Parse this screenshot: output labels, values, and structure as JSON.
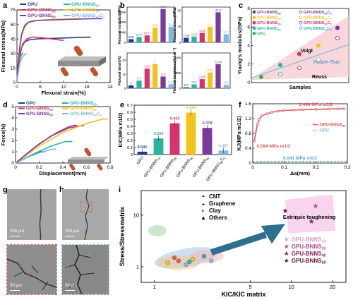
{
  "panel_labels": {
    "a": "a",
    "b": "b",
    "c": "c",
    "d": "d",
    "e": "e",
    "f": "f",
    "g": "g",
    "h": "h",
    "i": "i"
  },
  "colors": {
    "GPU": "#1f3a93",
    "GPU-BNNS10": "#2bb3a0",
    "GPU-BNNS20": "#d6336c",
    "GPU-BNNS40": "#f0c419",
    "GPU-BNNS50": "#7a3b9c",
    "GPU-BNNS40C2": "#7fb7e0",
    "green": "#3cb44b",
    "accent_f": "#e4585c"
  },
  "chart_data": [
    {
      "id": "a",
      "type": "line",
      "xlabel": "Flexural strain(%)",
      "ylabel": "Flexural stress(MPa)",
      "xlim": [
        0,
        24
      ],
      "ylim": [
        0,
        75
      ],
      "xticks": [
        0,
        6,
        12,
        18,
        24
      ],
      "yticks": [
        0,
        15,
        30,
        45,
        60,
        75
      ],
      "grid": false,
      "legend_position": "top",
      "series": [
        {
          "name": "GPU",
          "color": "GPU",
          "x": [
            0,
            0.3,
            0.7,
            1.2,
            2,
            3,
            5,
            8,
            12,
            16,
            19
          ],
          "y": [
            0,
            13,
            26,
            36,
            42,
            44,
            45,
            45.5,
            46,
            46.5,
            47
          ]
        },
        {
          "name": "GPU-BNNS10",
          "color": "GPU-BNNS10",
          "x": [
            0,
            0.2,
            0.5,
            0.8,
            1.2,
            1.6
          ],
          "y": [
            0,
            10,
            19,
            25,
            29,
            31
          ]
        },
        {
          "name": "GPU-BNNS20",
          "color": "GPU-BNNS20",
          "x": [
            0,
            0.3,
            0.8,
            1.5,
            2.5,
            4,
            6,
            8,
            10,
            12
          ],
          "y": [
            0,
            15,
            30,
            40,
            45,
            47,
            46.5,
            45.5,
            44.5,
            43.5
          ]
        },
        {
          "name": "GPU-BNNS40",
          "color": "GPU-BNNS40",
          "x": [
            0,
            0.3,
            0.7,
            1.2,
            2,
            3,
            5,
            8,
            12,
            15,
            16.5
          ],
          "y": [
            0,
            18,
            34,
            48,
            57,
            62,
            64,
            65,
            65.5,
            66,
            66
          ]
        },
        {
          "name": "GPU-BNNS50",
          "color": "GPU-BNNS50",
          "x": [
            0,
            0.3,
            0.7,
            1.2,
            2,
            3,
            5,
            8,
            12,
            16,
            20,
            22
          ],
          "y": [
            0,
            19,
            36,
            50,
            59,
            62.5,
            64,
            64.5,
            65,
            65.5,
            66,
            66
          ]
        },
        {
          "name": "GPU-BNNS40C2",
          "color": "GPU-BNNS40C2",
          "x": [
            0,
            0.3,
            0.6,
            1,
            1.5,
            2,
            2.5
          ],
          "y": [
            0,
            9,
            17,
            23,
            27,
            29,
            30
          ]
        }
      ],
      "legend": [
        {
          "text": "GPU",
          "color": "GPU"
        },
        {
          "text": "GPU-BNNS20",
          "color": "GPU-BNNS20"
        },
        {
          "text": "GPU-BNNS50",
          "color": "GPU-BNNS50"
        },
        {
          "text": "GPU-BNNS10",
          "color": "GPU-BNNS10"
        },
        {
          "text": "GPU-BNNS40",
          "color": "GPU-BNNS40"
        },
        {
          "text": "GPU-BNNS40C2",
          "color": "GPU-BNNS40C2"
        }
      ]
    },
    {
      "id": "b",
      "type": "bar",
      "subcharts": [
        {
          "ylabel": "Flexural modulus(MPa)",
          "yticks": [
            0,
            2000,
            4000,
            6000
          ],
          "ylim": [
            0,
            7000
          ],
          "values": [
            648,
            1077,
            1377,
            2939,
            6587,
            3111
          ],
          "labels": [
            "648",
            "1077",
            "1377",
            "2939",
            "6587",
            "3111"
          ]
        },
        {
          "ylabel": "Flexural stress(MPa)",
          "yticks": [
            0,
            25,
            50
          ],
          "ylim": [
            0,
            55
          ],
          "values": [
            7.08,
            9.06,
            14.9,
            24.2,
            46.9,
            12.7
          ],
          "labels": [
            "7.08",
            "9.06",
            "14.9",
            "24.2",
            "46.9",
            "12.7"
          ]
        },
        {
          "ylabel": "Flexural strain(%)",
          "yticks": [
            0,
            10,
            20
          ],
          "ylim": [
            0,
            25
          ],
          "values": [
            2.0,
            5.4,
            13.9,
            17.0,
            8.3,
            2.81
          ],
          "labels": [
            "2",
            "5.4",
            "13.9",
            "17",
            "8.3",
            "2.81"
          ]
        },
        {
          "ylabel": "Flexural toughness(kJ m⁻³)",
          "yticks": [
            0,
            2000,
            4000
          ],
          "ylim": [
            0,
            4600
          ],
          "values": [
            117,
            508,
            1188,
            2061,
            3134,
            458
          ],
          "labels": [
            "117",
            "508",
            "1188",
            "2061",
            "3134",
            "458"
          ]
        }
      ],
      "series_colors": [
        "GPU",
        "GPU-BNNS10",
        "GPU-BNNS20",
        "GPU-BNNS40",
        "GPU-BNNS50",
        "GPU-BNNS40C2"
      ]
    },
    {
      "id": "c",
      "type": "scatter",
      "xlabel": "Samples",
      "ylabel": "Young's modulus(GPa)",
      "yticks": [
        0,
        2,
        4,
        6,
        8
      ],
      "ylim": [
        0,
        8
      ],
      "legend": [
        {
          "text": "GPU-BNNS50",
          "color": "GPU-BNNS50"
        },
        {
          "text": "GPU-BNNS40",
          "color": "GPU-BNNS40"
        },
        {
          "text": "GPU-BNNS20",
          "color": "GPU-BNNS20"
        },
        {
          "text": "GPU-BNNS10",
          "color": "GPU-BNNS10"
        },
        {
          "text": "GPU",
          "color": "green"
        },
        {
          "text": "GPU-BNNS50C2",
          "color": "GPU-BNNS50"
        },
        {
          "text": "GPU-BNNS40C2",
          "color": "GPU-BNNS40"
        },
        {
          "text": "GPU-BNNS20C2",
          "color": "GPU-BNNS20"
        },
        {
          "text": "GPU-BNNS10C2",
          "color": "GPU-BNNS10"
        }
      ],
      "annotations": [
        "Voigt",
        "Halpin-Tsai",
        "Reuss"
      ],
      "points": [
        {
          "i": 1,
          "y": 0.6,
          "color": "green",
          "filled": true
        },
        {
          "i": 2,
          "y": 1.9,
          "color": "GPU-BNNS10",
          "filled": true
        },
        {
          "i": 2,
          "y": 0.9,
          "color": "GPU-BNNS10",
          "filled": false
        },
        {
          "i": 3,
          "y": 3.1,
          "color": "GPU-BNNS20",
          "filled": true
        },
        {
          "i": 3,
          "y": 1.6,
          "color": "GPU-BNNS20",
          "filled": false
        },
        {
          "i": 4,
          "y": 4.0,
          "color": "GPU-BNNS40",
          "filled": true
        },
        {
          "i": 4,
          "y": 2.5,
          "color": "GPU-BNNS40",
          "filled": false
        },
        {
          "i": 5,
          "y": 5.9,
          "color": "GPU-BNNS50",
          "filled": true
        },
        {
          "i": 5,
          "y": 4.8,
          "color": "GPU-BNNS50",
          "filled": false
        }
      ]
    },
    {
      "id": "d",
      "type": "line",
      "xlabel": "Displacement(mm)",
      "ylabel": "Force(N)",
      "xlim": [
        0,
        0.8
      ],
      "ylim": [
        0,
        5
      ],
      "xticks": [
        0,
        0.2,
        0.4,
        0.6,
        0.8
      ],
      "yticks": [
        0,
        1,
        2,
        3,
        4,
        5
      ],
      "series": [
        {
          "name": "GPU",
          "color": "GPU",
          "x": [
            0,
            0.1,
            0.18,
            0.22,
            0.25
          ],
          "y": [
            0,
            0.5,
            0.9,
            1.0,
            1.0
          ]
        },
        {
          "name": "GPU-BNNS10",
          "color": "GPU-BNNS10",
          "x": [
            0,
            0.15,
            0.3,
            0.42,
            0.48
          ],
          "y": [
            0,
            0.8,
            1.5,
            1.9,
            1.9
          ]
        },
        {
          "name": "GPU-BNNS20",
          "color": "GPU-BNNS20",
          "x": [
            0,
            0.15,
            0.3,
            0.45,
            0.55,
            0.58
          ],
          "y": [
            0,
            1.3,
            2.4,
            3.1,
            3.3,
            3.3
          ]
        },
        {
          "name": "GPU-BNNS40",
          "color": "GPU-BNNS40",
          "x": [
            0,
            0.2,
            0.4,
            0.6,
            0.74,
            0.78
          ],
          "y": [
            0,
            1.5,
            2.7,
            3.5,
            3.9,
            3.9
          ]
        },
        {
          "name": "GPU-BNNS50",
          "color": "GPU-BNNS50",
          "x": [
            0,
            0.2,
            0.35,
            0.45,
            0.5,
            0.52
          ],
          "y": [
            0,
            1.7,
            2.7,
            3.2,
            3.35,
            3.3
          ]
        },
        {
          "name": "GPU-BNNS40C2",
          "color": "GPU-BNNS40C2",
          "x": [
            0,
            0.1,
            0.2,
            0.3,
            0.34
          ],
          "y": [
            0,
            0.5,
            0.9,
            1.2,
            1.25
          ]
        }
      ],
      "legend": [
        {
          "text": "GPU",
          "color": "GPU"
        },
        {
          "text": "GPU-BNNS20",
          "color": "GPU-BNNS20"
        },
        {
          "text": "GPU-BNNS50",
          "color": "GPU-BNNS50"
        },
        {
          "text": "GPU-BNNS10",
          "color": "GPU-BNNS10"
        },
        {
          "text": "GPU-BNNS40",
          "color": "GPU-BNNS40"
        },
        {
          "text": "GPU-BNNS40C2",
          "color": "GPU-BNNS40C2"
        }
      ]
    },
    {
      "id": "e",
      "type": "bar",
      "ylabel": "KIC(MPa m1/2)",
      "ylim": [
        0,
        0.7
      ],
      "yticks": [
        0,
        0.1,
        0.2,
        0.3,
        0.4,
        0.5,
        0.6,
        0.7
      ],
      "categories": [
        "GPU",
        "GPU-BNNS10",
        "GPU-BNNS20",
        "GPU-BNNS40",
        "GPU-BNNS50",
        "GPU-BNNS40C2"
      ],
      "values": [
        0.041,
        0.229,
        0.443,
        0.595,
        0.378,
        0.057
      ],
      "labels": [
        "0.041",
        "0.229",
        "0.443",
        "0.595",
        "0.378",
        "0.057"
      ],
      "series_colors": [
        "GPU",
        "GPU-BNNS10",
        "GPU-BNNS20",
        "GPU-BNNS40",
        "GPU-BNNS50",
        "GPU-BNNS40C2"
      ]
    },
    {
      "id": "f",
      "type": "line",
      "xlabel": "Δa(mm)",
      "ylabel": "KJ(MPa m1/2)",
      "xlim": [
        0,
        0.3
      ],
      "ylim": [
        0,
        1.6
      ],
      "xticks": [
        0,
        0.1,
        0.2,
        0.3
      ],
      "yticks": [
        0,
        0.4,
        0.8,
        1.2,
        1.6
      ],
      "series": [
        {
          "name": "GPU-BNNS40",
          "color": "accent_f",
          "x": [
            0.005,
            0.01,
            0.015,
            0.02,
            0.03,
            0.045,
            0.06,
            0.08,
            0.1,
            0.13,
            0.16,
            0.2,
            0.24,
            0.27,
            0.29
          ],
          "y": [
            0.594,
            0.85,
            1.05,
            1.18,
            1.28,
            1.33,
            1.37,
            1.4,
            1.42,
            1.43,
            1.44,
            1.45,
            1.46,
            1.464,
            1.464
          ]
        },
        {
          "name": "GPU",
          "color": "GPU-BNNS40C2",
          "dashed": true,
          "x": [
            0,
            0.3
          ],
          "y": [
            0.041,
            0.041
          ]
        }
      ],
      "annotations": [
        "1.464 MPa m1/2",
        "0.594 MPa m1/2",
        "0.041 MPa m1/2"
      ],
      "legend": [
        {
          "text": "GPU-BNNS40",
          "color": "accent_f"
        },
        {
          "text": "GPU",
          "color": "GPU-BNNS40C2"
        }
      ]
    },
    {
      "id": "i",
      "type": "scatter",
      "xlabel": "KIC/KIC matrix",
      "ylabel": "Stress/Stressmatrix",
      "xscale": "log",
      "yscale": "log",
      "xticks": [
        1,
        5,
        10,
        20
      ],
      "yticks": [
        1,
        10
      ],
      "legend_categories": [
        "CNT",
        "Graphene",
        "Clay",
        "Others"
      ],
      "annotation": "Extrinsic toughening",
      "legend_stars": [
        {
          "text": "GPU-BNNS10",
          "color": "#d6a0c8"
        },
        {
          "text": "GPU-BNNS20",
          "color": "#b54a8a"
        },
        {
          "text": "GPU-BNNS40",
          "color": "#8a2060"
        },
        {
          "text": "GPU-BNNS50",
          "color": "#6a1040"
        }
      ],
      "stars": [
        {
          "x": 11,
          "y": 8.5,
          "color": "#d6a0c8"
        },
        {
          "x": 15,
          "y": 15,
          "color": "#b54a8a"
        },
        {
          "x": 14,
          "y": 7.5,
          "color": "#8a2060"
        },
        {
          "x": 9,
          "y": 12,
          "color": "#6a1040"
        }
      ]
    }
  ],
  "micrographs": {
    "g_top": "200 μm",
    "g_bottom": "50 μm",
    "h_top": "200 μm",
    "h_bottom": "30 μm"
  }
}
